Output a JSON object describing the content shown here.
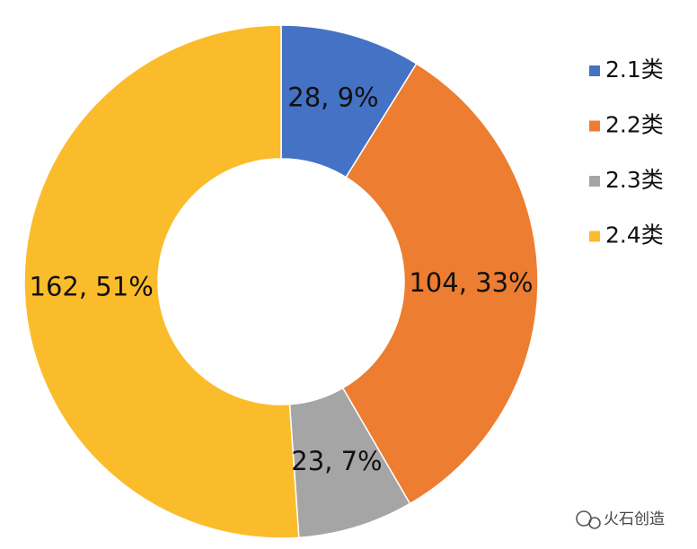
{
  "chart_data": {
    "type": "donut",
    "categories": [
      "2.1类",
      "2.2类",
      "2.3类",
      "2.4类"
    ],
    "values": [
      28,
      104,
      23,
      162
    ],
    "value_labels": [
      "28, 9%",
      "104, 33%",
      "23, 7%",
      "162, 51%"
    ],
    "colors": [
      "#4472c4",
      "#ed7d31",
      "#a5a5a5",
      "#fbbc2c"
    ],
    "legend": "right"
  },
  "watermark": "火石创造"
}
